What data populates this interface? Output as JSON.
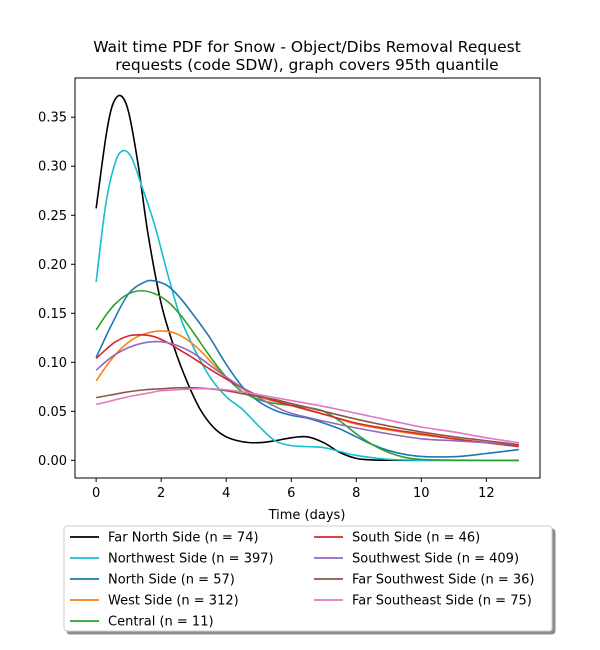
{
  "chart_data": {
    "type": "line",
    "title": [
      "Wait time PDF for Snow - Object/Dibs Removal Request",
      "requests (code SDW), graph covers 95th quantile"
    ],
    "xlabel": "Time (days)",
    "ylabel": "",
    "xlim": [
      -0.65,
      13.65
    ],
    "ylim": [
      -0.018,
      0.39
    ],
    "xticks": [
      0,
      2,
      4,
      6,
      8,
      10,
      12
    ],
    "yticks": [
      0.0,
      0.05,
      0.1,
      0.15,
      0.2,
      0.25,
      0.3,
      0.35
    ],
    "grid": false,
    "legend_placement": "bottom, below plot, two columns",
    "series": [
      {
        "name": "Far North Side (n = 74)",
        "color": "#000000",
        "x": [
          0,
          0.3,
          0.5,
          0.75,
          1.0,
          1.3,
          1.6,
          2.0,
          2.4,
          2.8,
          3.2,
          3.6,
          4.0,
          4.5,
          5.0,
          5.5,
          6.0,
          6.5,
          7.0,
          7.5,
          8.0,
          8.5,
          9.0,
          10,
          11,
          12,
          13
        ],
        "y": [
          0.257,
          0.33,
          0.362,
          0.372,
          0.355,
          0.3,
          0.23,
          0.16,
          0.115,
          0.08,
          0.052,
          0.034,
          0.024,
          0.019,
          0.018,
          0.02,
          0.023,
          0.024,
          0.018,
          0.008,
          0.002,
          0.0004,
          0.0001,
          0,
          0,
          0,
          0
        ]
      },
      {
        "name": "Northwest Side (n = 397)",
        "color": "#17becf",
        "x": [
          0,
          0.3,
          0.6,
          0.85,
          1.1,
          1.4,
          1.8,
          2.2,
          2.6,
          3.0,
          3.5,
          4.0,
          4.5,
          5.0,
          5.5,
          6.0,
          6.5,
          7.0,
          7.5,
          8.0,
          9.0,
          10,
          11,
          12,
          13
        ],
        "y": [
          0.182,
          0.262,
          0.305,
          0.316,
          0.308,
          0.28,
          0.24,
          0.19,
          0.145,
          0.115,
          0.085,
          0.065,
          0.052,
          0.035,
          0.02,
          0.015,
          0.014,
          0.013,
          0.009,
          0.005,
          0.001,
          0.0002,
          0,
          0,
          0
        ]
      },
      {
        "name": "North Side (n = 57)",
        "color": "#1f77b4",
        "x": [
          0,
          0.5,
          1.0,
          1.5,
          1.8,
          2.2,
          2.6,
          3.0,
          3.5,
          4.0,
          4.5,
          5.0,
          5.5,
          6.0,
          6.5,
          7.0,
          7.5,
          8.0,
          8.5,
          9.0,
          9.5,
          10,
          10.5,
          11,
          11.5,
          12,
          12.5,
          13
        ],
        "y": [
          0.105,
          0.14,
          0.17,
          0.182,
          0.183,
          0.178,
          0.165,
          0.148,
          0.125,
          0.098,
          0.075,
          0.06,
          0.051,
          0.046,
          0.043,
          0.038,
          0.032,
          0.024,
          0.016,
          0.01,
          0.006,
          0.004,
          0.0035,
          0.0037,
          0.005,
          0.007,
          0.009,
          0.011
        ]
      },
      {
        "name": "West Side (n = 312)",
        "color": "#ff7f0e",
        "x": [
          0,
          0.4,
          0.8,
          1.2,
          1.6,
          2.0,
          2.4,
          2.8,
          3.2,
          3.6,
          4.0,
          4.5,
          5.0,
          5.5,
          6.0,
          6.5,
          7.0,
          7.5,
          8.0,
          9.0,
          10,
          11,
          12,
          13
        ],
        "y": [
          0.081,
          0.1,
          0.115,
          0.125,
          0.13,
          0.132,
          0.13,
          0.123,
          0.112,
          0.098,
          0.085,
          0.073,
          0.065,
          0.06,
          0.056,
          0.052,
          0.047,
          0.042,
          0.037,
          0.031,
          0.026,
          0.022,
          0.018,
          0.015
        ]
      },
      {
        "name": "Central (n = 11)",
        "color": "#2ca02c",
        "x": [
          0,
          0.3,
          0.6,
          1.0,
          1.4,
          1.8,
          2.2,
          2.6,
          3.0,
          3.5,
          4.0,
          4.5,
          5.0,
          5.5,
          6.0,
          6.5,
          7.0,
          7.5,
          8.0,
          8.5,
          9.0,
          9.5,
          10,
          11,
          12,
          13
        ],
        "y": [
          0.133,
          0.148,
          0.16,
          0.17,
          0.173,
          0.17,
          0.162,
          0.148,
          0.13,
          0.106,
          0.085,
          0.07,
          0.062,
          0.058,
          0.056,
          0.054,
          0.05,
          0.04,
          0.027,
          0.016,
          0.008,
          0.003,
          0.001,
          0.0002,
          0,
          0
        ]
      },
      {
        "name": "South Side (n = 46)",
        "color": "#d62728",
        "x": [
          0,
          0.3,
          0.6,
          1.0,
          1.4,
          1.8,
          2.2,
          2.6,
          3.0,
          3.5,
          4.0,
          4.5,
          5.0,
          6.0,
          7.0,
          8.0,
          9.0,
          10,
          11,
          12,
          13
        ],
        "y": [
          0.104,
          0.113,
          0.121,
          0.127,
          0.128,
          0.126,
          0.12,
          0.112,
          0.104,
          0.093,
          0.083,
          0.074,
          0.066,
          0.056,
          0.047,
          0.038,
          0.032,
          0.027,
          0.022,
          0.018,
          0.014
        ]
      },
      {
        "name": "Southwest Side (n = 409)",
        "color": "#9467bd",
        "x": [
          0,
          0.5,
          1.0,
          1.5,
          2.0,
          2.5,
          3.0,
          3.5,
          4.0,
          4.5,
          5.0,
          5.5,
          6.0,
          7.0,
          8.0,
          9.0,
          10,
          11,
          12,
          13
        ],
        "y": [
          0.092,
          0.106,
          0.115,
          0.12,
          0.121,
          0.117,
          0.109,
          0.097,
          0.085,
          0.074,
          0.064,
          0.055,
          0.048,
          0.04,
          0.033,
          0.027,
          0.022,
          0.02,
          0.018,
          0.016
        ]
      },
      {
        "name": "Far Southwest Side (n = 36)",
        "color": "#8c564b",
        "x": [
          0,
          0.5,
          1.0,
          1.5,
          2.0,
          2.5,
          3.0,
          3.5,
          4.0,
          4.5,
          5.0,
          5.5,
          6.0,
          7.0,
          8.0,
          9.0,
          10,
          11,
          12,
          13
        ],
        "y": [
          0.064,
          0.067,
          0.07,
          0.072,
          0.073,
          0.074,
          0.074,
          0.073,
          0.071,
          0.068,
          0.065,
          0.062,
          0.058,
          0.05,
          0.042,
          0.035,
          0.029,
          0.024,
          0.02,
          0.016
        ]
      },
      {
        "name": "Far Southeast Side (n = 75)",
        "color": "#e377c2",
        "x": [
          0,
          0.5,
          1.0,
          1.5,
          2.0,
          2.5,
          3.0,
          3.5,
          4.0,
          4.5,
          5.0,
          5.5,
          6.0,
          7.0,
          8.0,
          9.0,
          10,
          11,
          12,
          13
        ],
        "y": [
          0.057,
          0.061,
          0.065,
          0.068,
          0.071,
          0.072,
          0.073,
          0.073,
          0.072,
          0.07,
          0.067,
          0.064,
          0.061,
          0.055,
          0.048,
          0.041,
          0.034,
          0.029,
          0.023,
          0.018
        ]
      }
    ]
  }
}
